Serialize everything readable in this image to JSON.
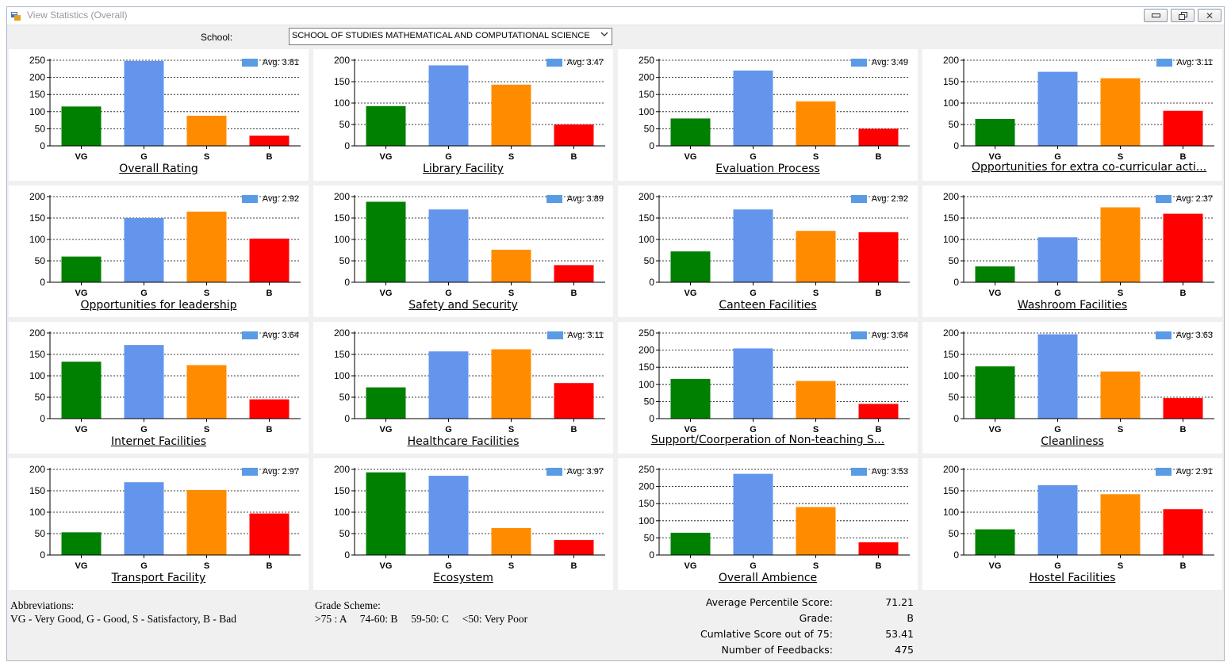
{
  "window": {
    "title": "View Statistics (Overall)",
    "buttons": {
      "minimize": "▭",
      "restore": "⧉",
      "close": "✕"
    }
  },
  "school": {
    "label": "School:",
    "value": "SCHOOL OF STUDIES MATHEMATICAL AND COMPUTATIONAL SCIENCE"
  },
  "colors": {
    "VG": "#008000",
    "G": "#6495ED",
    "S": "#FF8C00",
    "B": "#FF0000"
  },
  "chart_data": [
    {
      "type": "bar",
      "title": "Overall Rating",
      "legend": "Avg: 3.81",
      "categories": [
        "VG",
        "G",
        "S",
        "B"
      ],
      "values": [
        115,
        248,
        88,
        30
      ],
      "ylim": [
        0,
        250
      ],
      "yticks": [
        0,
        50,
        100,
        150,
        200,
        250
      ]
    },
    {
      "type": "bar",
      "title": "Library Facility",
      "legend": "Avg: 3.47",
      "categories": [
        "VG",
        "G",
        "S",
        "B"
      ],
      "values": [
        93,
        188,
        143,
        50
      ],
      "ylim": [
        0,
        200
      ],
      "yticks": [
        0,
        50,
        100,
        150,
        200
      ]
    },
    {
      "type": "bar",
      "title": "Evaluation Process",
      "legend": "Avg: 3.49",
      "categories": [
        "VG",
        "G",
        "S",
        "B"
      ],
      "values": [
        80,
        220,
        130,
        50
      ],
      "ylim": [
        0,
        250
      ],
      "yticks": [
        0,
        50,
        100,
        150,
        200,
        250
      ]
    },
    {
      "type": "bar",
      "title": "Opportunities for extra co-curricular acti...",
      "legend": "Avg: 3.11",
      "categories": [
        "VG",
        "G",
        "S",
        "B"
      ],
      "values": [
        63,
        173,
        158,
        82
      ],
      "ylim": [
        0,
        200
      ],
      "yticks": [
        0,
        50,
        100,
        150,
        200
      ],
      "long": true
    },
    {
      "type": "bar",
      "title": "Opportunities for leadership",
      "legend": "Avg: 2.92",
      "categories": [
        "VG",
        "G",
        "S",
        "B"
      ],
      "values": [
        60,
        150,
        165,
        102
      ],
      "ylim": [
        0,
        200
      ],
      "yticks": [
        0,
        50,
        100,
        150,
        200
      ]
    },
    {
      "type": "bar",
      "title": "Safety and Security",
      "legend": "Avg: 3.89",
      "categories": [
        "VG",
        "G",
        "S",
        "B"
      ],
      "values": [
        188,
        170,
        76,
        40
      ],
      "ylim": [
        0,
        200
      ],
      "yticks": [
        0,
        50,
        100,
        150,
        200
      ]
    },
    {
      "type": "bar",
      "title": "Canteen Facilities",
      "legend": "Avg: 2.92",
      "categories": [
        "VG",
        "G",
        "S",
        "B"
      ],
      "values": [
        72,
        170,
        120,
        117
      ],
      "ylim": [
        0,
        200
      ],
      "yticks": [
        0,
        50,
        100,
        150,
        200
      ]
    },
    {
      "type": "bar",
      "title": "Washroom Facilities",
      "legend": "Avg: 2.37",
      "categories": [
        "VG",
        "G",
        "S",
        "B"
      ],
      "values": [
        37,
        105,
        175,
        160
      ],
      "ylim": [
        0,
        200
      ],
      "yticks": [
        0,
        50,
        100,
        150,
        200
      ]
    },
    {
      "type": "bar",
      "title": "Internet Facilities",
      "legend": "Avg: 3.64",
      "categories": [
        "VG",
        "G",
        "S",
        "B"
      ],
      "values": [
        133,
        172,
        125,
        45
      ],
      "ylim": [
        0,
        200
      ],
      "yticks": [
        0,
        50,
        100,
        150,
        200
      ]
    },
    {
      "type": "bar",
      "title": "Healthcare Facilities",
      "legend": "Avg: 3.11",
      "categories": [
        "VG",
        "G",
        "S",
        "B"
      ],
      "values": [
        73,
        157,
        162,
        83
      ],
      "ylim": [
        0,
        200
      ],
      "yticks": [
        0,
        50,
        100,
        150,
        200
      ]
    },
    {
      "type": "bar",
      "title": "Support/Coorperation of Non-teaching S...",
      "legend": "Avg: 3.64",
      "categories": [
        "VG",
        "G",
        "S",
        "B"
      ],
      "values": [
        116,
        205,
        110,
        43
      ],
      "ylim": [
        0,
        250
      ],
      "yticks": [
        0,
        50,
        100,
        150,
        200,
        250
      ]
    },
    {
      "type": "bar",
      "title": "Cleanliness",
      "legend": "Avg: 3.63",
      "categories": [
        "VG",
        "G",
        "S",
        "B"
      ],
      "values": [
        122,
        197,
        110,
        48
      ],
      "ylim": [
        0,
        200
      ],
      "yticks": [
        0,
        50,
        100,
        150,
        200
      ]
    },
    {
      "type": "bar",
      "title": "Transport Facility",
      "legend": "Avg: 2.97",
      "categories": [
        "VG",
        "G",
        "S",
        "B"
      ],
      "values": [
        53,
        170,
        152,
        97
      ],
      "ylim": [
        0,
        200
      ],
      "yticks": [
        0,
        50,
        100,
        150,
        200
      ]
    },
    {
      "type": "bar",
      "title": "Ecosystem",
      "legend": "Avg: 3.97",
      "categories": [
        "VG",
        "G",
        "S",
        "B"
      ],
      "values": [
        193,
        185,
        63,
        35
      ],
      "ylim": [
        0,
        200
      ],
      "yticks": [
        0,
        50,
        100,
        150,
        200
      ]
    },
    {
      "type": "bar",
      "title": "Overall Ambience",
      "legend": "Avg: 3.53",
      "categories": [
        "VG",
        "G",
        "S",
        "B"
      ],
      "values": [
        65,
        237,
        140,
        37
      ],
      "ylim": [
        0,
        250
      ],
      "yticks": [
        0,
        50,
        100,
        150,
        200,
        250
      ]
    },
    {
      "type": "bar",
      "title": "Hostel Facilities",
      "legend": "Avg: 2.91",
      "categories": [
        "VG",
        "G",
        "S",
        "B"
      ],
      "values": [
        60,
        163,
        142,
        107
      ],
      "ylim": [
        0,
        200
      ],
      "yticks": [
        0,
        50,
        100,
        150,
        200
      ]
    }
  ],
  "abbreviations": {
    "heading": "Abbreviations:",
    "text": "VG - Very Good, G - Good, S - Satisfactory, B - Bad"
  },
  "grade_scheme": {
    "heading": "Grade Scheme:",
    "text": ">75 : A     74-60: B     59-50: C     <50: Very Poor"
  },
  "summary": [
    {
      "label": "Average Percentile Score:",
      "value": "71.21"
    },
    {
      "label": "Grade:",
      "value": "B"
    },
    {
      "label": "Cumlative Score out of 75:",
      "value": "53.41"
    },
    {
      "label": "Number of Feedbacks:",
      "value": "475"
    }
  ]
}
